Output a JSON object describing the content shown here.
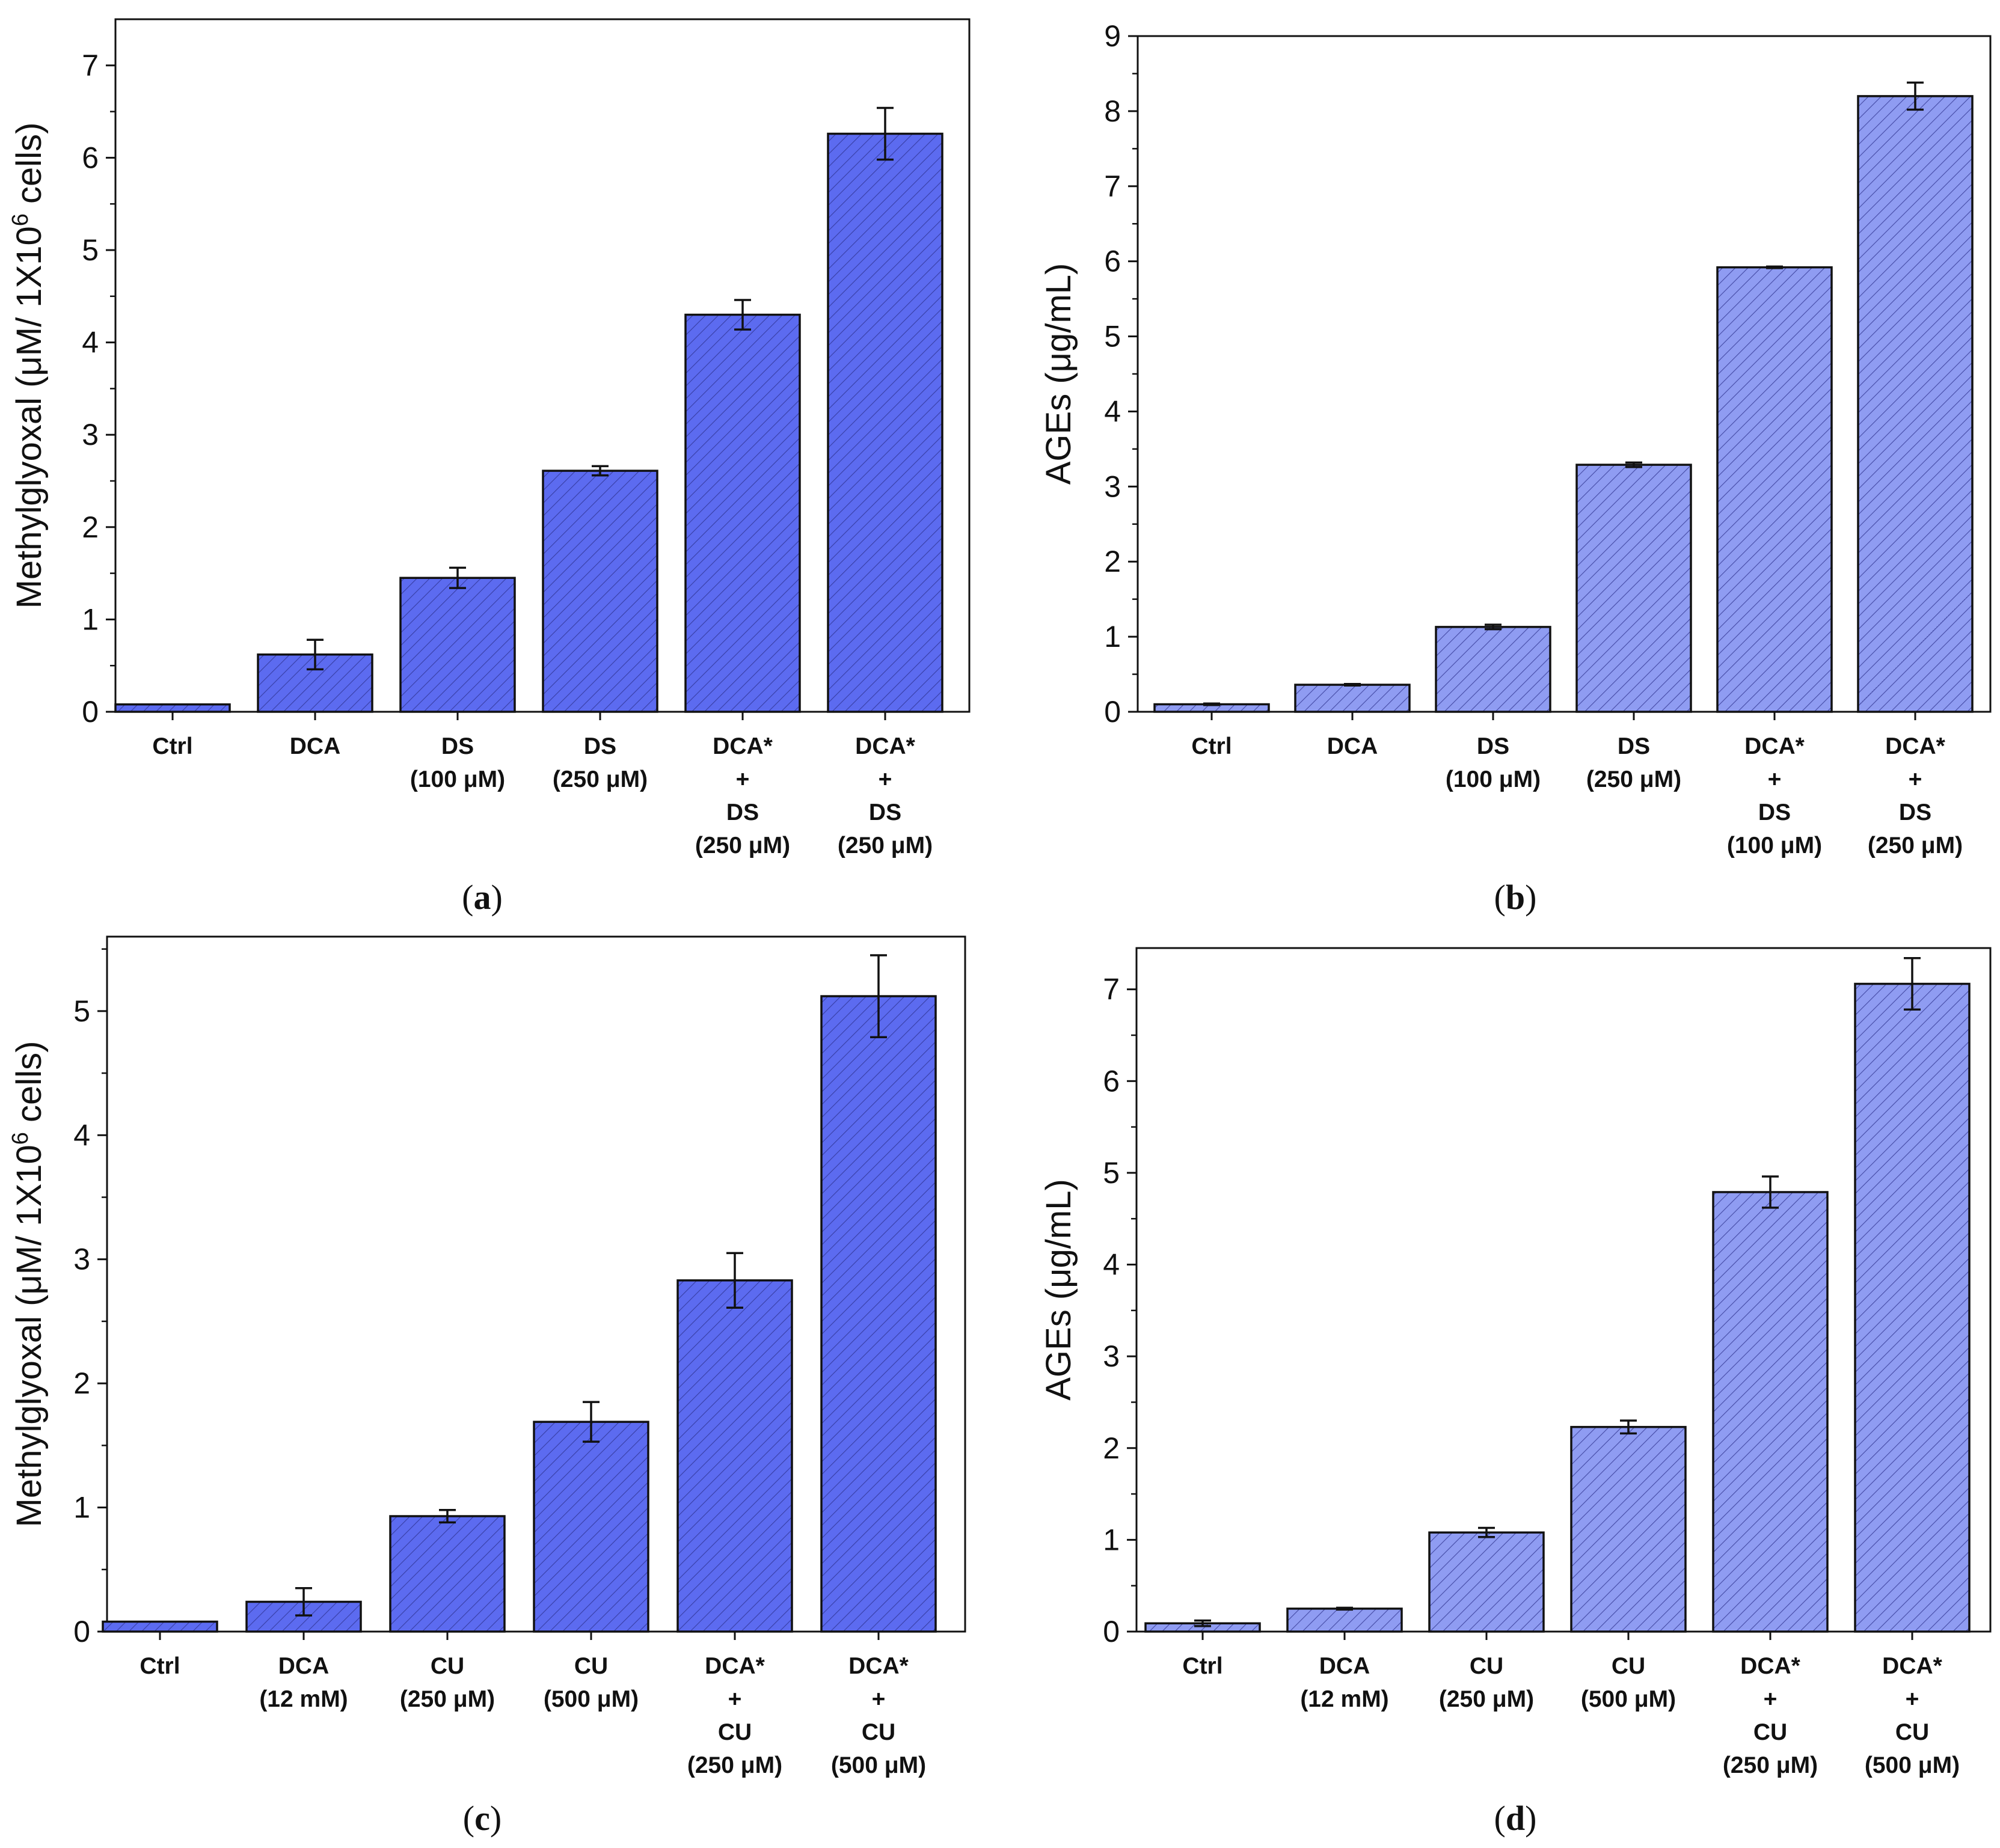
{
  "colors": {
    "bar_dark": "#5c6bf0",
    "bar_light": "#8f9cf2",
    "hatch": "#2a2f8a",
    "axis": "#111111"
  },
  "chart_data": [
    {
      "id": "a",
      "type": "bar",
      "caption": "a",
      "ylabel": "Methylglyoxal (μM/ 1X10",
      "ylabel_sup": "6",
      "ylabel_tail": " cells)",
      "ylim": [
        0,
        7.5
      ],
      "yticks": [
        0,
        1,
        2,
        3,
        4,
        5,
        6,
        7
      ],
      "bar_color": "#5c6bf0",
      "categories": [
        [
          "Ctrl"
        ],
        [
          "DCA"
        ],
        [
          "DS",
          "(100 μM)"
        ],
        [
          "DS",
          "(250 μM)"
        ],
        [
          "DCA*",
          "+",
          "DS",
          "(250 μM)"
        ],
        [
          "DCA*",
          "+",
          "DS",
          "(250 μM)"
        ]
      ],
      "values": [
        0.08,
        0.62,
        1.45,
        2.61,
        4.3,
        6.26
      ],
      "errors": [
        0.0,
        0.16,
        0.11,
        0.05,
        0.16,
        0.28
      ]
    },
    {
      "id": "b",
      "type": "bar",
      "caption": "b",
      "ylabel": "AGEs (μg/mL)",
      "ylabel_sup": "",
      "ylabel_tail": "",
      "ylim": [
        0,
        9
      ],
      "yticks": [
        0,
        1,
        2,
        3,
        4,
        5,
        6,
        7,
        8,
        9
      ],
      "bar_color": "#8f9cf2",
      "categories": [
        [
          "Ctrl"
        ],
        [
          "DCA"
        ],
        [
          "DS",
          "(100 μM)"
        ],
        [
          "DS",
          "(250 μM)"
        ],
        [
          "DCA*",
          "+",
          "DS",
          "(100 μM)"
        ],
        [
          "DCA*",
          "+",
          "DS",
          "(250 μM)"
        ]
      ],
      "values": [
        0.1,
        0.36,
        1.13,
        3.29,
        5.92,
        8.2
      ],
      "errors": [
        0.01,
        0.01,
        0.03,
        0.03,
        0.01,
        0.18
      ]
    },
    {
      "id": "c",
      "type": "bar",
      "caption": "c",
      "ylabel": "Methylglyoxal (μM/ 1X10",
      "ylabel_sup": "6",
      "ylabel_tail": " cells)",
      "ylim": [
        0,
        5.6
      ],
      "yticks": [
        0,
        1,
        2,
        3,
        4,
        5
      ],
      "bar_color": "#5c6bf0",
      "categories": [
        [
          "Ctrl"
        ],
        [
          "DCA",
          "(12 mM)"
        ],
        [
          "CU",
          "(250 μM)"
        ],
        [
          "CU",
          "(500 μM)"
        ],
        [
          "DCA*",
          "+",
          "CU",
          "(250 μM)"
        ],
        [
          "DCA*",
          "+",
          "CU",
          "(500 μM)"
        ]
      ],
      "values": [
        0.08,
        0.24,
        0.93,
        1.69,
        2.83,
        5.12
      ],
      "errors": [
        0.0,
        0.11,
        0.05,
        0.16,
        0.22,
        0.33
      ]
    },
    {
      "id": "d",
      "type": "bar",
      "caption": "d",
      "ylabel": "AGEs (μg/mL)",
      "ylabel_sup": "",
      "ylabel_tail": "",
      "ylim": [
        0,
        7.45
      ],
      "yticks": [
        0,
        1,
        2,
        3,
        4,
        5,
        6,
        7
      ],
      "bar_color": "#8f9cf2",
      "categories": [
        [
          "Ctrl"
        ],
        [
          "DCA",
          "(12 mM)"
        ],
        [
          "CU",
          "(250 μM)"
        ],
        [
          "CU",
          "(500 μM)"
        ],
        [
          "DCA*",
          "+",
          "CU",
          "(250 μM)"
        ],
        [
          "DCA*",
          "+",
          "CU",
          "(500 μM)"
        ]
      ],
      "values": [
        0.09,
        0.25,
        1.08,
        2.23,
        4.79,
        7.06
      ],
      "errors": [
        0.03,
        0.01,
        0.05,
        0.07,
        0.17,
        0.28
      ]
    }
  ]
}
